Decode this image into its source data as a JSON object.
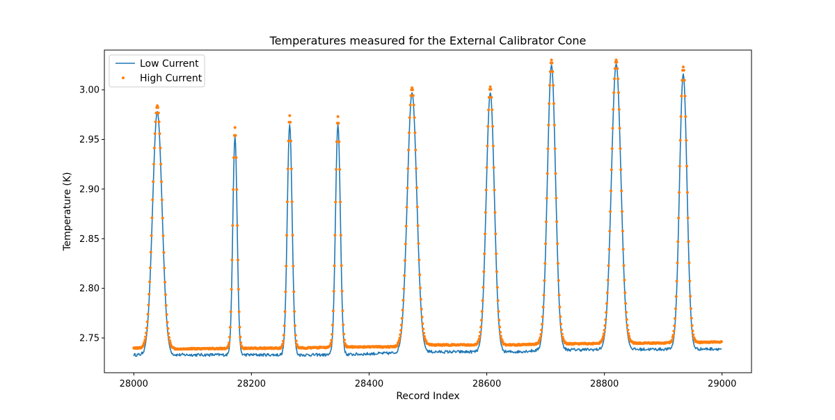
{
  "chart_data": {
    "type": "line",
    "title": "Temperatures measured for the External Calibrator Cone",
    "xlabel": "Record Index",
    "ylabel": "Temperature (K)",
    "xlim": [
      27950,
      29050
    ],
    "ylim": [
      2.715,
      3.04
    ],
    "xticks": [
      28000,
      28200,
      28400,
      28600,
      28800,
      29000
    ],
    "xtick_labels": [
      "28000",
      "28200",
      "28400",
      "28600",
      "28800",
      "29000"
    ],
    "yticks": [
      2.75,
      2.8,
      2.85,
      2.9,
      2.95,
      3.0
    ],
    "ytick_labels": [
      "2.75",
      "2.80",
      "2.85",
      "2.90",
      "2.95",
      "3.00"
    ],
    "grid": false,
    "legend_position": "upper-left",
    "colors": {
      "low": "#1f77b4",
      "high": "#ff7f0e",
      "axes": "#000000",
      "background": "#ffffff"
    },
    "series": [
      {
        "name": "Low Current",
        "style": "line",
        "x_range": [
          28000,
          28999
        ],
        "peaks": [
          {
            "x": 28040,
            "height": 2.978,
            "halfwidth": 7
          },
          {
            "x": 28172,
            "height": 2.953,
            "halfwidth": 3.2
          },
          {
            "x": 28265,
            "height": 2.965,
            "halfwidth": 3.6
          },
          {
            "x": 28347,
            "height": 2.965,
            "halfwidth": 3.6
          },
          {
            "x": 28473,
            "height": 2.997,
            "halfwidth": 7
          },
          {
            "x": 28606,
            "height": 2.997,
            "halfwidth": 6
          },
          {
            "x": 28710,
            "height": 3.025,
            "halfwidth": 6
          },
          {
            "x": 28820,
            "height": 3.026,
            "halfwidth": 7
          },
          {
            "x": 28934,
            "height": 3.016,
            "halfwidth": 5.5
          }
        ],
        "baseline": [
          {
            "x": 28000,
            "y": 2.733
          },
          {
            "x": 28350,
            "y": 2.733
          },
          {
            "x": 28500,
            "y": 2.736
          },
          {
            "x": 28650,
            "y": 2.736
          },
          {
            "x": 28700,
            "y": 2.738
          },
          {
            "x": 29000,
            "y": 2.739
          }
        ]
      },
      {
        "name": "High Current",
        "style": "scatter",
        "x_range": [
          28000,
          28999
        ],
        "peaks": [
          {
            "x": 28040,
            "height": 2.984,
            "halfwidth": 7
          },
          {
            "x": 28172,
            "height": 2.962,
            "halfwidth": 3.2
          },
          {
            "x": 28265,
            "height": 2.974,
            "halfwidth": 3.6
          },
          {
            "x": 28347,
            "height": 2.973,
            "halfwidth": 3.6
          },
          {
            "x": 28473,
            "height": 3.002,
            "halfwidth": 7
          },
          {
            "x": 28606,
            "height": 3.003,
            "halfwidth": 6
          },
          {
            "x": 28710,
            "height": 3.03,
            "halfwidth": 6
          },
          {
            "x": 28820,
            "height": 3.03,
            "halfwidth": 7
          },
          {
            "x": 28934,
            "height": 3.023,
            "halfwidth": 5.5
          }
        ],
        "baseline": [
          {
            "x": 28000,
            "y": 2.74
          },
          {
            "x": 28050,
            "y": 2.739
          },
          {
            "x": 28300,
            "y": 2.74
          },
          {
            "x": 28350,
            "y": 2.741
          },
          {
            "x": 28450,
            "y": 2.741
          },
          {
            "x": 28500,
            "y": 2.743
          },
          {
            "x": 28650,
            "y": 2.743
          },
          {
            "x": 28700,
            "y": 2.744
          },
          {
            "x": 28900,
            "y": 2.745
          },
          {
            "x": 29000,
            "y": 2.746
          }
        ]
      }
    ]
  }
}
